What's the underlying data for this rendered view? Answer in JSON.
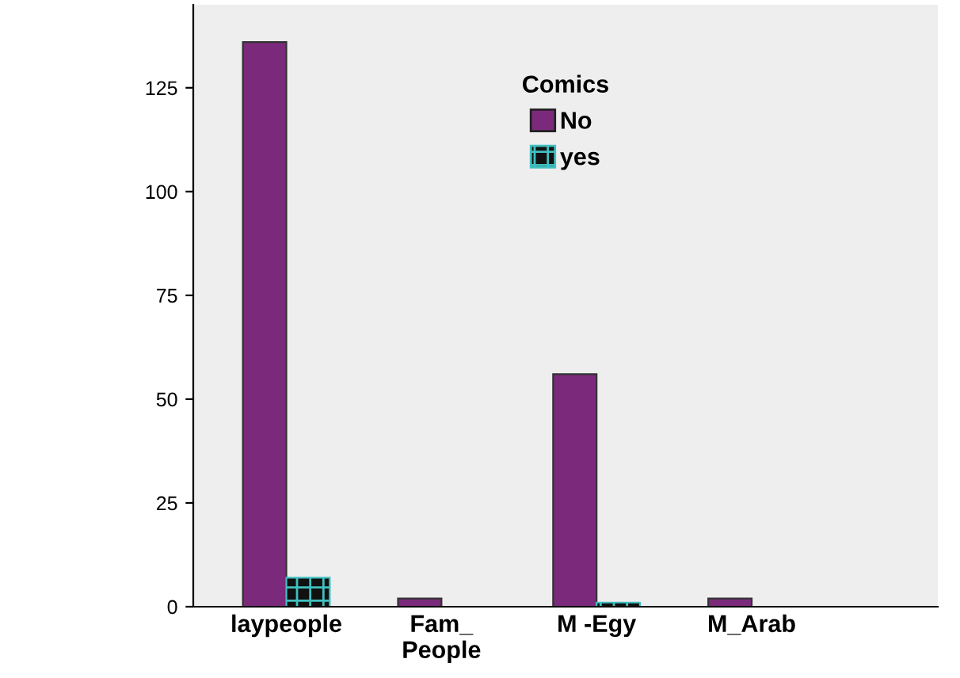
{
  "chart_data": {
    "type": "bar",
    "legend_title": "Comics",
    "categories": [
      "laypeople",
      "Fam_\nPeople",
      "M -Egy",
      "M_Arab"
    ],
    "series": [
      {
        "name": "No",
        "color": "#7b2a7b",
        "values": [
          136,
          2,
          56,
          2
        ]
      },
      {
        "name": "yes",
        "color": "#40c0c0",
        "values": [
          7,
          0,
          1,
          0
        ]
      }
    ],
    "ylim": [
      0,
      145
    ],
    "yticks": [
      0,
      25,
      50,
      75,
      100,
      125
    ],
    "grid": false,
    "legend": "top"
  }
}
